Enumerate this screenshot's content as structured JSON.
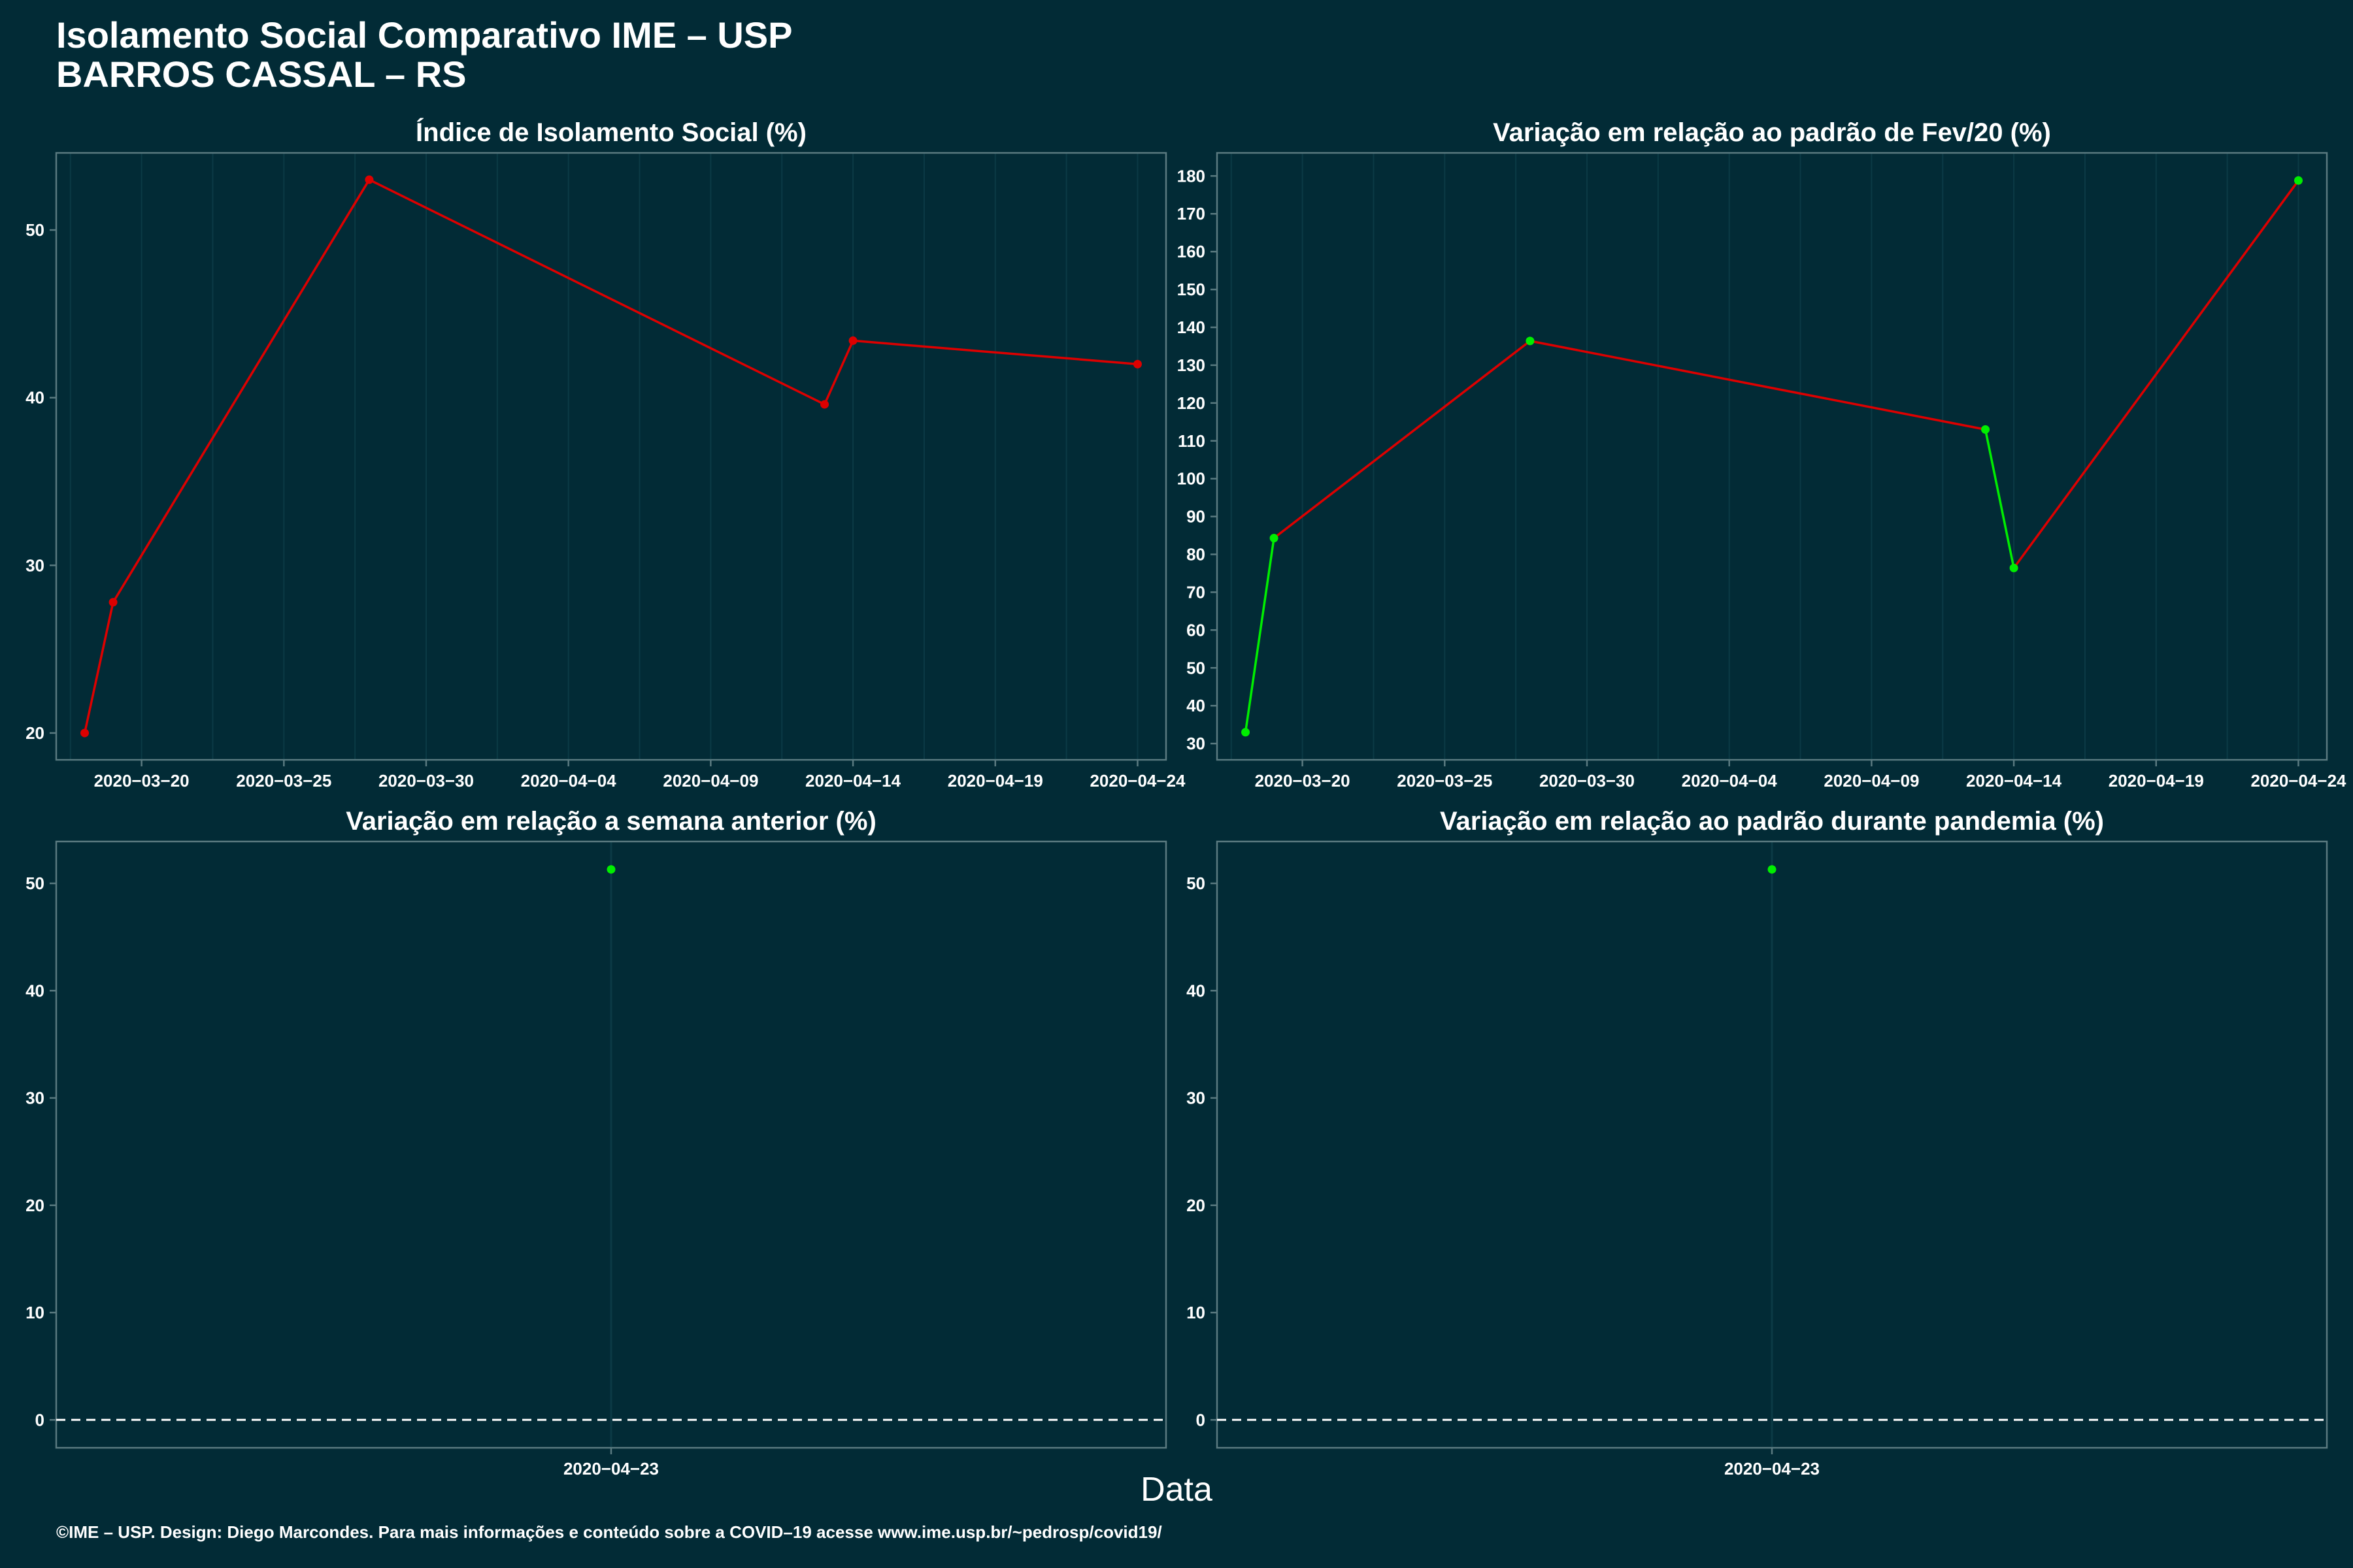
{
  "header": {
    "title_line1": "Isolamento Social Comparativo IME – USP",
    "title_line2": "BARROS CASSAL – RS"
  },
  "x_axis_label": "Data",
  "caption": "©IME – USP. Design: Diego Marcondes. Para mais informações e conteúdo sobre a COVID–19 acesse www.ime.usp.br/~pedrosp/covid19/",
  "colors": {
    "background": "#022b36",
    "increase": "#dd0000",
    "decrease": "#00ee00",
    "frame": "#5a7a80",
    "grid": "#0b3a45"
  },
  "chart_data": [
    {
      "type": "line",
      "title": "Índice de Isolamento Social (%)",
      "x": [
        "2020-03-18",
        "2020-03-19",
        "2020-03-28",
        "2020-04-13",
        "2020-04-14",
        "2020-04-24"
      ],
      "y": [
        20,
        27.8,
        53,
        39.6,
        43.4,
        42
      ],
      "x_ticks": [
        "2020-03-20",
        "2020-03-25",
        "2020-03-30",
        "2020-04-04",
        "2020-04-09",
        "2020-04-14",
        "2020-04-19",
        "2020-04-24"
      ],
      "y_ticks": [
        20,
        30,
        40,
        50
      ],
      "xlim": [
        "2020-03-17",
        "2020-04-25"
      ],
      "ylim": [
        18.4,
        54.6
      ],
      "point_colors": [
        "red",
        "red",
        "red",
        "red",
        "red",
        "red"
      ],
      "grid": true
    },
    {
      "type": "line",
      "title": "Variação em relação ao padrão de Fev/20 (%)",
      "x": [
        "2020-03-18",
        "2020-03-19",
        "2020-03-28",
        "2020-04-13",
        "2020-04-14",
        "2020-04-24"
      ],
      "y": [
        33,
        84.3,
        136.4,
        113,
        76.4,
        178.8
      ],
      "x_ticks": [
        "2020-03-20",
        "2020-03-25",
        "2020-03-30",
        "2020-04-04",
        "2020-04-09",
        "2020-04-14",
        "2020-04-19",
        "2020-04-24"
      ],
      "y_ticks": [
        30,
        40,
        50,
        60,
        70,
        80,
        90,
        100,
        110,
        120,
        130,
        140,
        150,
        160,
        170,
        180
      ],
      "xlim": [
        "2020-03-17",
        "2020-04-25"
      ],
      "ylim": [
        25.7,
        186.1
      ],
      "point_colors": [
        "green",
        "green",
        "green",
        "green",
        "green",
        "green"
      ],
      "segment_colors": [
        "green",
        "red",
        "red",
        "green",
        "red"
      ],
      "grid": true
    },
    {
      "type": "scatter",
      "title": "Variação em relação a semana anterior (%)",
      "x": [
        "2020-04-23"
      ],
      "y": [
        51.3
      ],
      "x_ticks": [
        "2020-04-23"
      ],
      "y_ticks": [
        0,
        10,
        20,
        30,
        40,
        50
      ],
      "ylim": [
        -2.6,
        53.9
      ],
      "point_colors": [
        "green"
      ],
      "reference_line": 0,
      "grid": true
    },
    {
      "type": "scatter",
      "title": "Variação em relação ao padrão durante pandemia (%)",
      "x": [
        "2020-04-23"
      ],
      "y": [
        51.3
      ],
      "x_ticks": [
        "2020-04-23"
      ],
      "y_ticks": [
        0,
        10,
        20,
        30,
        40,
        50
      ],
      "ylim": [
        -2.6,
        53.9
      ],
      "point_colors": [
        "green"
      ],
      "reference_line": 0,
      "grid": true
    }
  ]
}
